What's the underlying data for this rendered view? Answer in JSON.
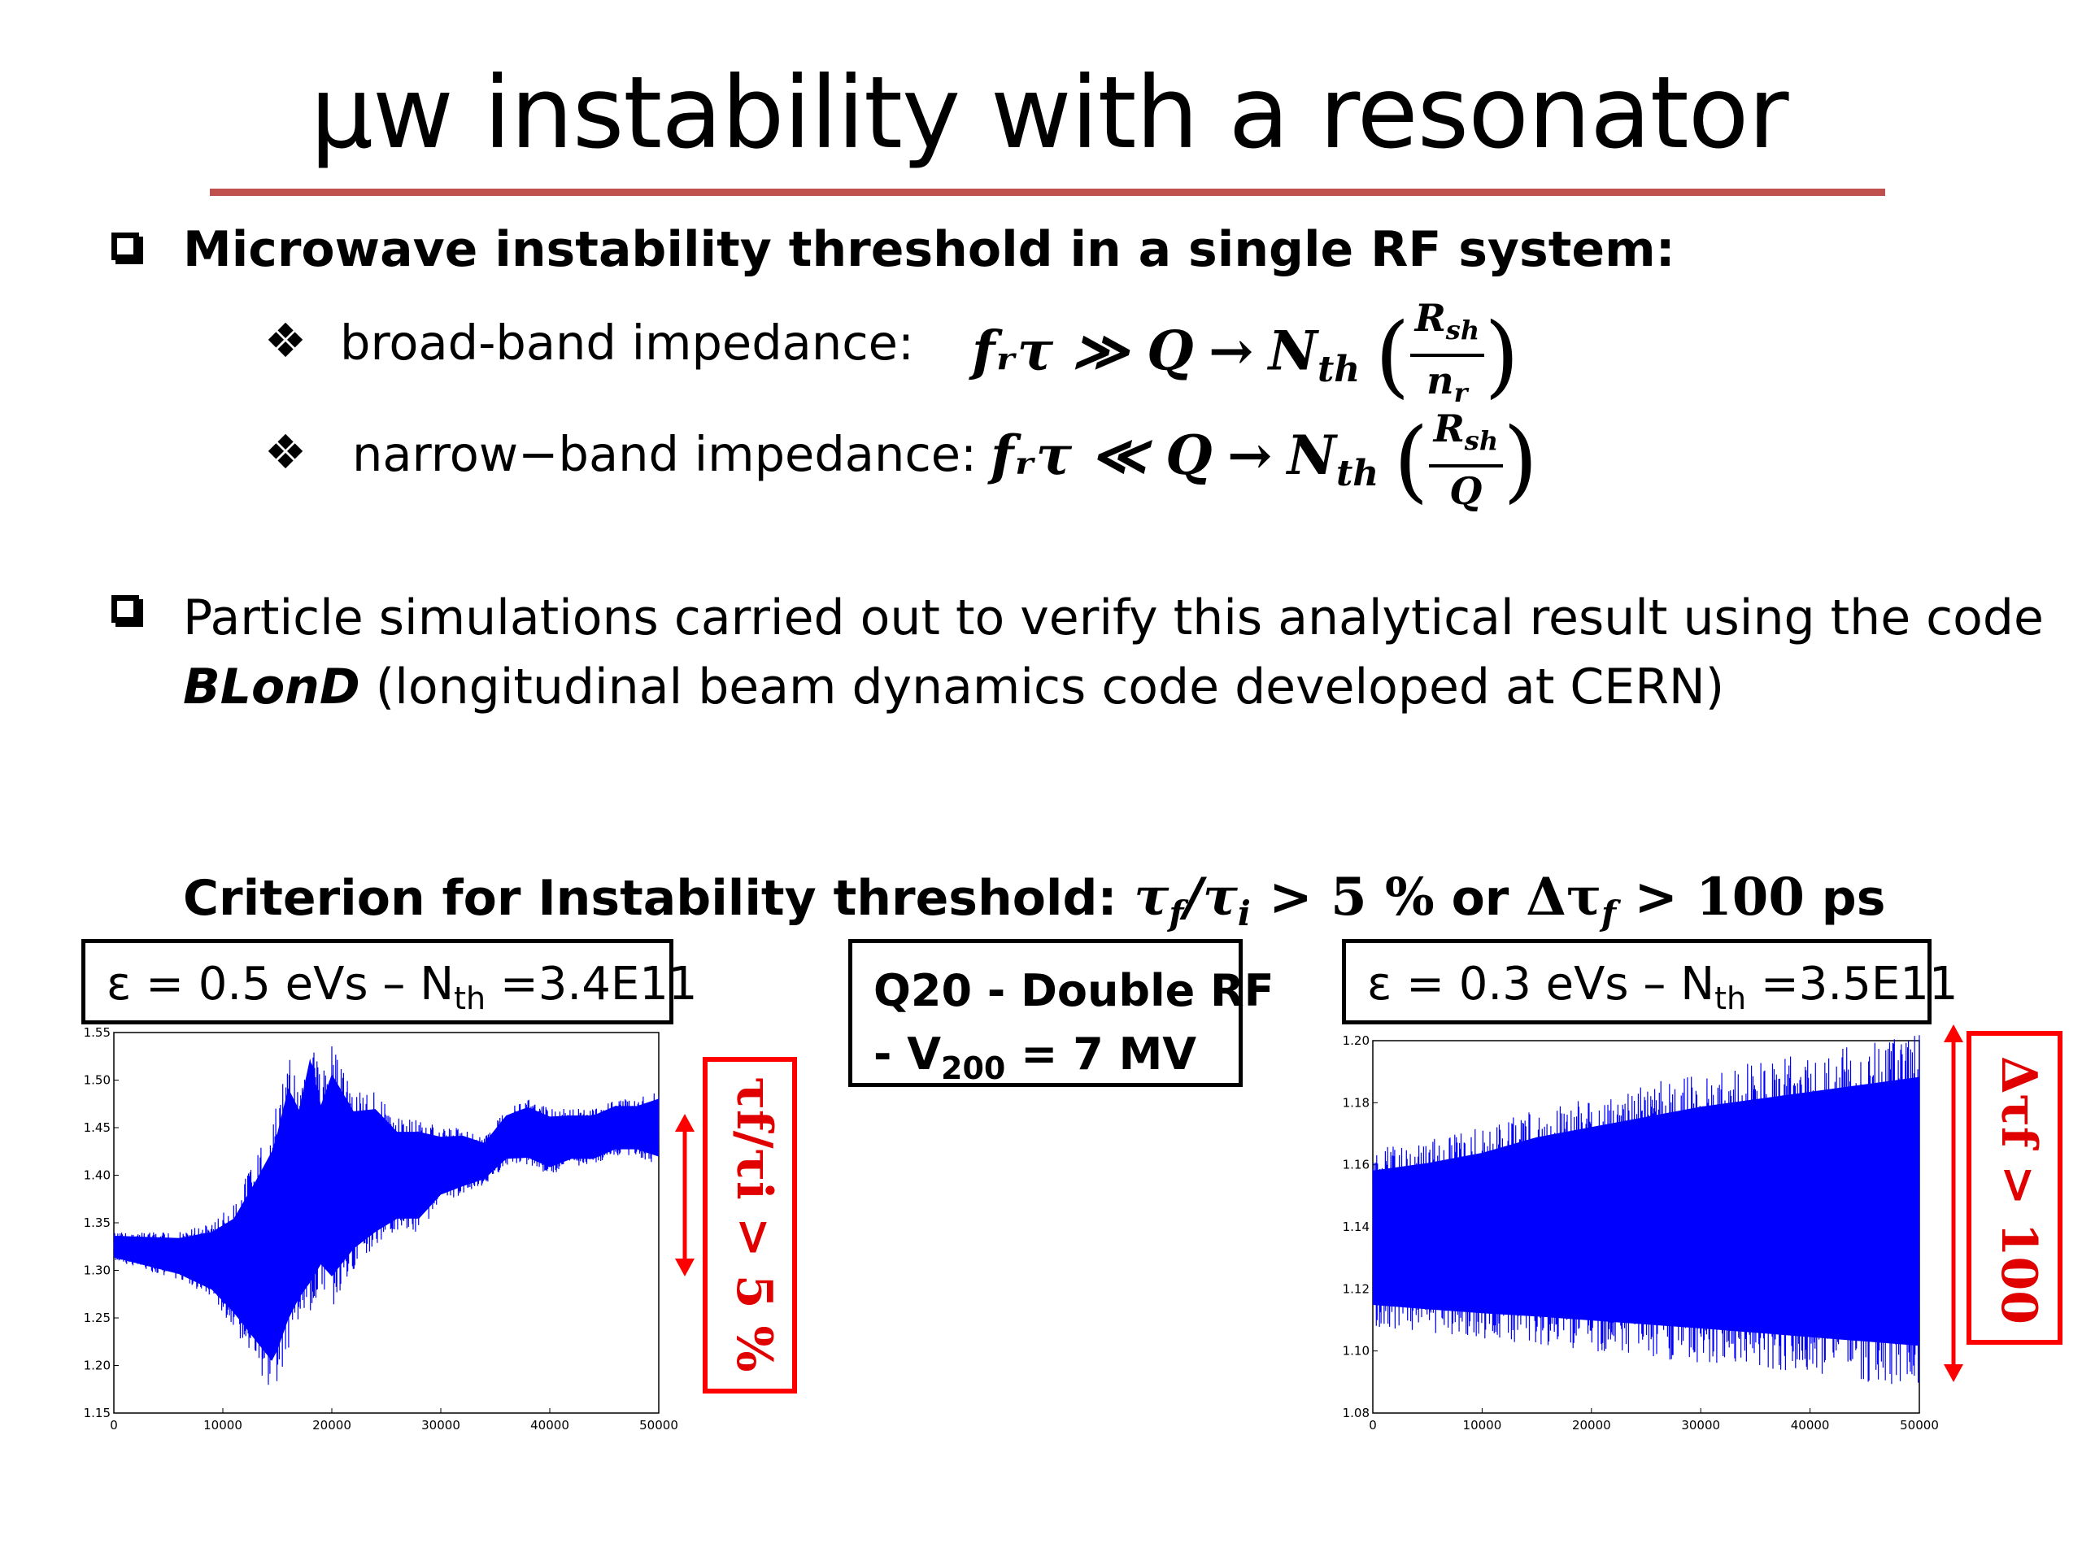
{
  "slide": {
    "title": "μw instability with a resonator",
    "bullet1": {
      "heading": "Microwave instability threshold in a single RF system:",
      "sub1": {
        "label": "broad-band impedance:",
        "condition": "fᵣτ ≫ Q",
        "arrow": "→",
        "result": "N",
        "result_sub": "th",
        "frac_num": "R",
        "frac_num_sub": "sh",
        "frac_den": "n",
        "frac_den_sub": "r"
      },
      "sub2": {
        "label": "narrow−band impedance:",
        "condition": "fᵣτ ≪ Q",
        "arrow": "→",
        "result": "N",
        "result_sub": "th",
        "frac_num": "R",
        "frac_num_sub": "sh",
        "frac_den": "Q"
      }
    },
    "bullet2": {
      "line1": "Particle simulations carried out to verify this analytical result using the code",
      "code_name": "BLonD",
      "line2_rest": " (longitudinal beam dynamics code developed at CERN)"
    },
    "criterion": {
      "text": "Criterion for Instability threshold: ",
      "math1": "τ",
      "math1_sub": "f",
      "math1_mid": "/τ",
      "math1_sub2": "i",
      "math1_rest": " > 5 %",
      "or_text": " or ",
      "math2": "Δτ",
      "math2_sub": "f",
      "math2_rest": " > 100",
      "unit": " ps"
    },
    "box_left": {
      "prefix": "ε = 0.5 eVs – N",
      "sub": "th",
      "suffix": " =3.4E11"
    },
    "box_center": {
      "line1": "Q20 - Double RF",
      "line2_prefix": "- V",
      "line2_sub": "200",
      "line2_suffix": " = 7 MV"
    },
    "box_right": {
      "prefix": "ε = 0.3 eVs – N",
      "sub": "th",
      "suffix": " =3.5E11"
    },
    "annot_left": "τf/τi > 5 %",
    "annot_right": "Δτf > 100",
    "colors": {
      "accent_rule": "#c0504d",
      "series": "#0000ff",
      "annotation": "#ff0000"
    }
  },
  "chart_data": [
    {
      "type": "line",
      "xlim": [
        0,
        50000
      ],
      "ylim": [
        1.15,
        1.55
      ],
      "xticks": [
        "0",
        "10000",
        "20000",
        "30000",
        "40000",
        "50000"
      ],
      "yticks": [
        "1.15",
        "1.20",
        "1.25",
        "1.30",
        "1.35",
        "1.40",
        "1.45",
        "1.50",
        "1.55"
      ],
      "series": [
        {
          "color": "#0000ff",
          "x": [
            0,
            3000,
            6000,
            9000,
            11000,
            13000,
            14500,
            15000,
            16000,
            17000,
            18000,
            19000,
            20000,
            22000,
            24000,
            26000,
            28000,
            30000,
            32000,
            34000,
            36000,
            38000,
            40000,
            42000,
            44000,
            46000,
            48000,
            50000
          ],
          "upper": [
            1.34,
            1.34,
            1.34,
            1.35,
            1.37,
            1.42,
            1.46,
            1.48,
            1.53,
            1.5,
            1.56,
            1.5,
            1.54,
            1.49,
            1.49,
            1.46,
            1.46,
            1.45,
            1.45,
            1.44,
            1.47,
            1.48,
            1.47,
            1.47,
            1.47,
            1.48,
            1.48,
            1.49
          ],
          "lower": [
            1.31,
            1.3,
            1.29,
            1.27,
            1.24,
            1.2,
            1.17,
            1.18,
            1.21,
            1.24,
            1.25,
            1.28,
            1.26,
            1.3,
            1.32,
            1.34,
            1.34,
            1.37,
            1.38,
            1.39,
            1.41,
            1.41,
            1.4,
            1.41,
            1.41,
            1.42,
            1.42,
            1.41
          ]
        }
      ]
    },
    {
      "type": "line",
      "xlim": [
        0,
        50000
      ],
      "ylim": [
        1.08,
        1.2
      ],
      "xticks": [
        "0",
        "10000",
        "20000",
        "30000",
        "40000",
        "50000"
      ],
      "yticks": [
        "1.08",
        "1.10",
        "1.12",
        "1.14",
        "1.16",
        "1.18",
        "1.20"
      ],
      "series": [
        {
          "color": "#0000ff",
          "x": [
            0,
            5000,
            10000,
            15000,
            20000,
            25000,
            30000,
            35000,
            40000,
            45000,
            50000
          ],
          "upper": [
            1.165,
            1.168,
            1.172,
            1.178,
            1.182,
            1.186,
            1.19,
            1.193,
            1.196,
            1.199,
            1.202
          ],
          "lower": [
            1.108,
            1.106,
            1.104,
            1.102,
            1.1,
            1.098,
            1.096,
            1.094,
            1.092,
            1.09,
            1.088
          ]
        }
      ]
    }
  ]
}
